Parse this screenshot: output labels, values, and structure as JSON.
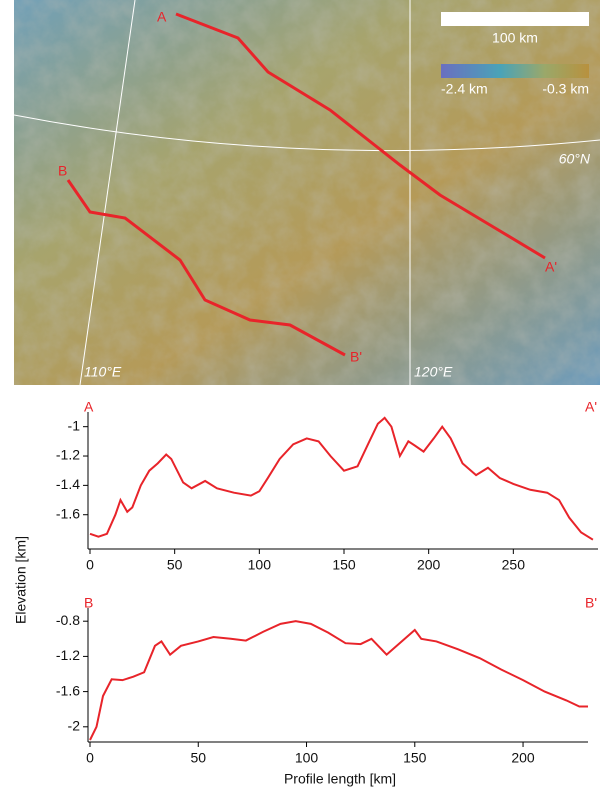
{
  "map": {
    "scale_label": "100 km",
    "colorbar_min": "-2.4 km",
    "colorbar_max": "-0.3 km",
    "latitude": "60°N",
    "longitude_1": "110°E",
    "longitude_2": "120°E",
    "label_a": "A",
    "label_a2": "A'",
    "label_b": "B",
    "label_b2": "B'"
  },
  "chart_data": [
    {
      "type": "line",
      "corner_left": "A",
      "corner_right": "A'",
      "ylabel": "Elevation [km]",
      "color": "#e8242a",
      "x": [
        0,
        5,
        10,
        15,
        18,
        22,
        25,
        30,
        35,
        40,
        45,
        48,
        55,
        60,
        68,
        75,
        85,
        95,
        100,
        105,
        112,
        120,
        128,
        135,
        142,
        150,
        158,
        165,
        170,
        174,
        178,
        183,
        188,
        192,
        197,
        203,
        208,
        213,
        220,
        228,
        235,
        242,
        250,
        260,
        270,
        277,
        283,
        290,
        297
      ],
      "values": [
        -1.73,
        -1.75,
        -1.73,
        -1.6,
        -1.5,
        -1.58,
        -1.55,
        -1.4,
        -1.3,
        -1.25,
        -1.19,
        -1.22,
        -1.38,
        -1.42,
        -1.37,
        -1.42,
        -1.45,
        -1.47,
        -1.44,
        -1.35,
        -1.22,
        -1.12,
        -1.08,
        -1.1,
        -1.2,
        -1.3,
        -1.27,
        -1.1,
        -0.98,
        -0.94,
        -1.0,
        -1.2,
        -1.1,
        -1.13,
        -1.17,
        -1.08,
        -1.0,
        -1.08,
        -1.25,
        -1.33,
        -1.28,
        -1.35,
        -1.39,
        -1.43,
        -1.45,
        -1.5,
        -1.62,
        -1.72,
        -1.77
      ],
      "xlim": [
        0,
        300
      ],
      "ylim": [
        -1.82,
        -0.9
      ],
      "xticks": [
        0,
        50,
        100,
        150,
        200,
        250
      ],
      "yticks": [
        -1,
        -1.2,
        -1.4,
        -1.6
      ]
    },
    {
      "type": "line",
      "corner_left": "B",
      "corner_right": "B'",
      "xlabel": "Profile length [km]",
      "color": "#e8242a",
      "x": [
        0,
        3,
        6,
        10,
        15,
        20,
        25,
        30,
        33,
        37,
        42,
        50,
        57,
        65,
        72,
        80,
        88,
        95,
        102,
        110,
        118,
        125,
        130,
        137,
        143,
        150,
        153,
        160,
        170,
        180,
        190,
        200,
        210,
        220,
        226,
        230
      ],
      "values": [
        -2.15,
        -2.0,
        -1.65,
        -1.46,
        -1.47,
        -1.43,
        -1.38,
        -1.08,
        -1.03,
        -1.18,
        -1.08,
        -1.03,
        -0.98,
        -1.0,
        -1.02,
        -0.92,
        -0.83,
        -0.8,
        -0.83,
        -0.93,
        -1.05,
        -1.06,
        -1.0,
        -1.18,
        -1.05,
        -0.9,
        -1.0,
        -1.03,
        -1.12,
        -1.22,
        -1.35,
        -1.47,
        -1.6,
        -1.7,
        -1.77,
        -1.77
      ],
      "xlim": [
        0,
        230
      ],
      "ylim": [
        -2.15,
        -0.65
      ],
      "xticks": [
        0,
        50,
        100,
        150,
        200
      ],
      "yticks": [
        -0.8,
        -1.2,
        -1.6,
        -2
      ]
    }
  ]
}
